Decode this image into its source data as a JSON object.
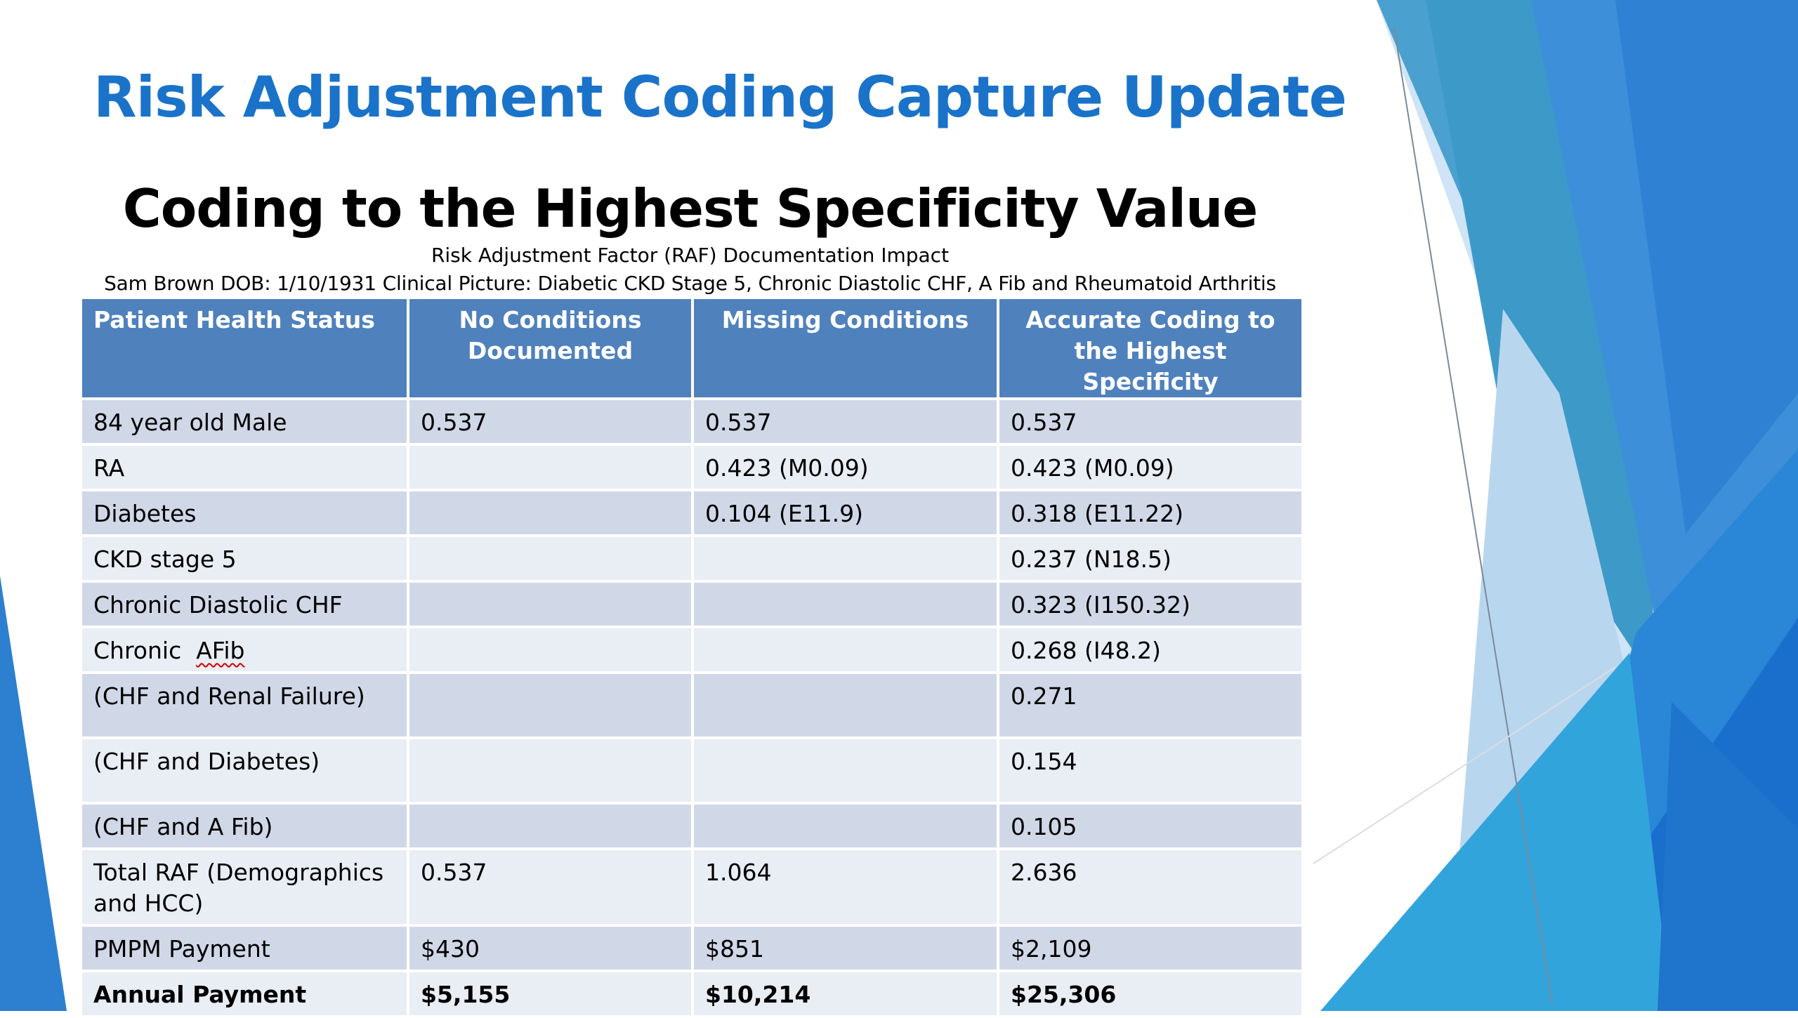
{
  "slide": {
    "title": "Risk Adjustment Coding Capture Update",
    "subtitle": "Coding to the Highest Specificity Value",
    "caption": "Risk Adjustment Factor (RAF) Documentation Impact",
    "patient_line": "Sam Brown DOB: 1/10/1931 Clinical Picture: Diabetic CKD Stage 5, Chronic Diastolic CHF, A Fib and Rheumatoid Arthritis"
  },
  "table": {
    "headers": [
      "Patient Health Status",
      "No Conditions Documented",
      "Missing Conditions",
      "Accurate Coding to the Highest Specificity"
    ],
    "rows": [
      [
        "84 year old Male",
        "0.537",
        "0.537",
        "0.537"
      ],
      [
        "RA",
        "",
        "0.423 (M0.09)",
        "0.423 (M0.09)"
      ],
      [
        "Diabetes",
        "",
        "0.104 (E11.9)",
        "0.318 (E11.22)"
      ],
      [
        "CKD stage 5",
        "",
        "",
        "0.237 (N18.5)"
      ],
      [
        "Chronic Diastolic CHF",
        "",
        "",
        "0.323 (I150.32)"
      ],
      [
        "Chronic  AFib",
        "",
        "",
        "0.268 (I48.2)"
      ],
      [
        "(CHF and Renal Failure)",
        "",
        "",
        "0.271"
      ],
      [
        "(CHF and Diabetes)",
        "",
        "",
        "0.154"
      ],
      [
        "(CHF and A Fib)",
        "",
        "",
        "0.105"
      ],
      [
        "Total RAF (Demographics and HCC)",
        "0.537",
        "1.064",
        "2.636"
      ],
      [
        "PMPM Payment",
        "$430",
        "$851",
        "$2,109"
      ],
      [
        "Annual Payment",
        "$5,155",
        "$10,214",
        "$25,306"
      ]
    ]
  },
  "colors": {
    "title": "#1a73c9",
    "header_bg": "#4f81bd",
    "row_odd": "#d0d8e8",
    "row_even": "#e9edf4",
    "accent_blue": "#1f7bd0"
  }
}
